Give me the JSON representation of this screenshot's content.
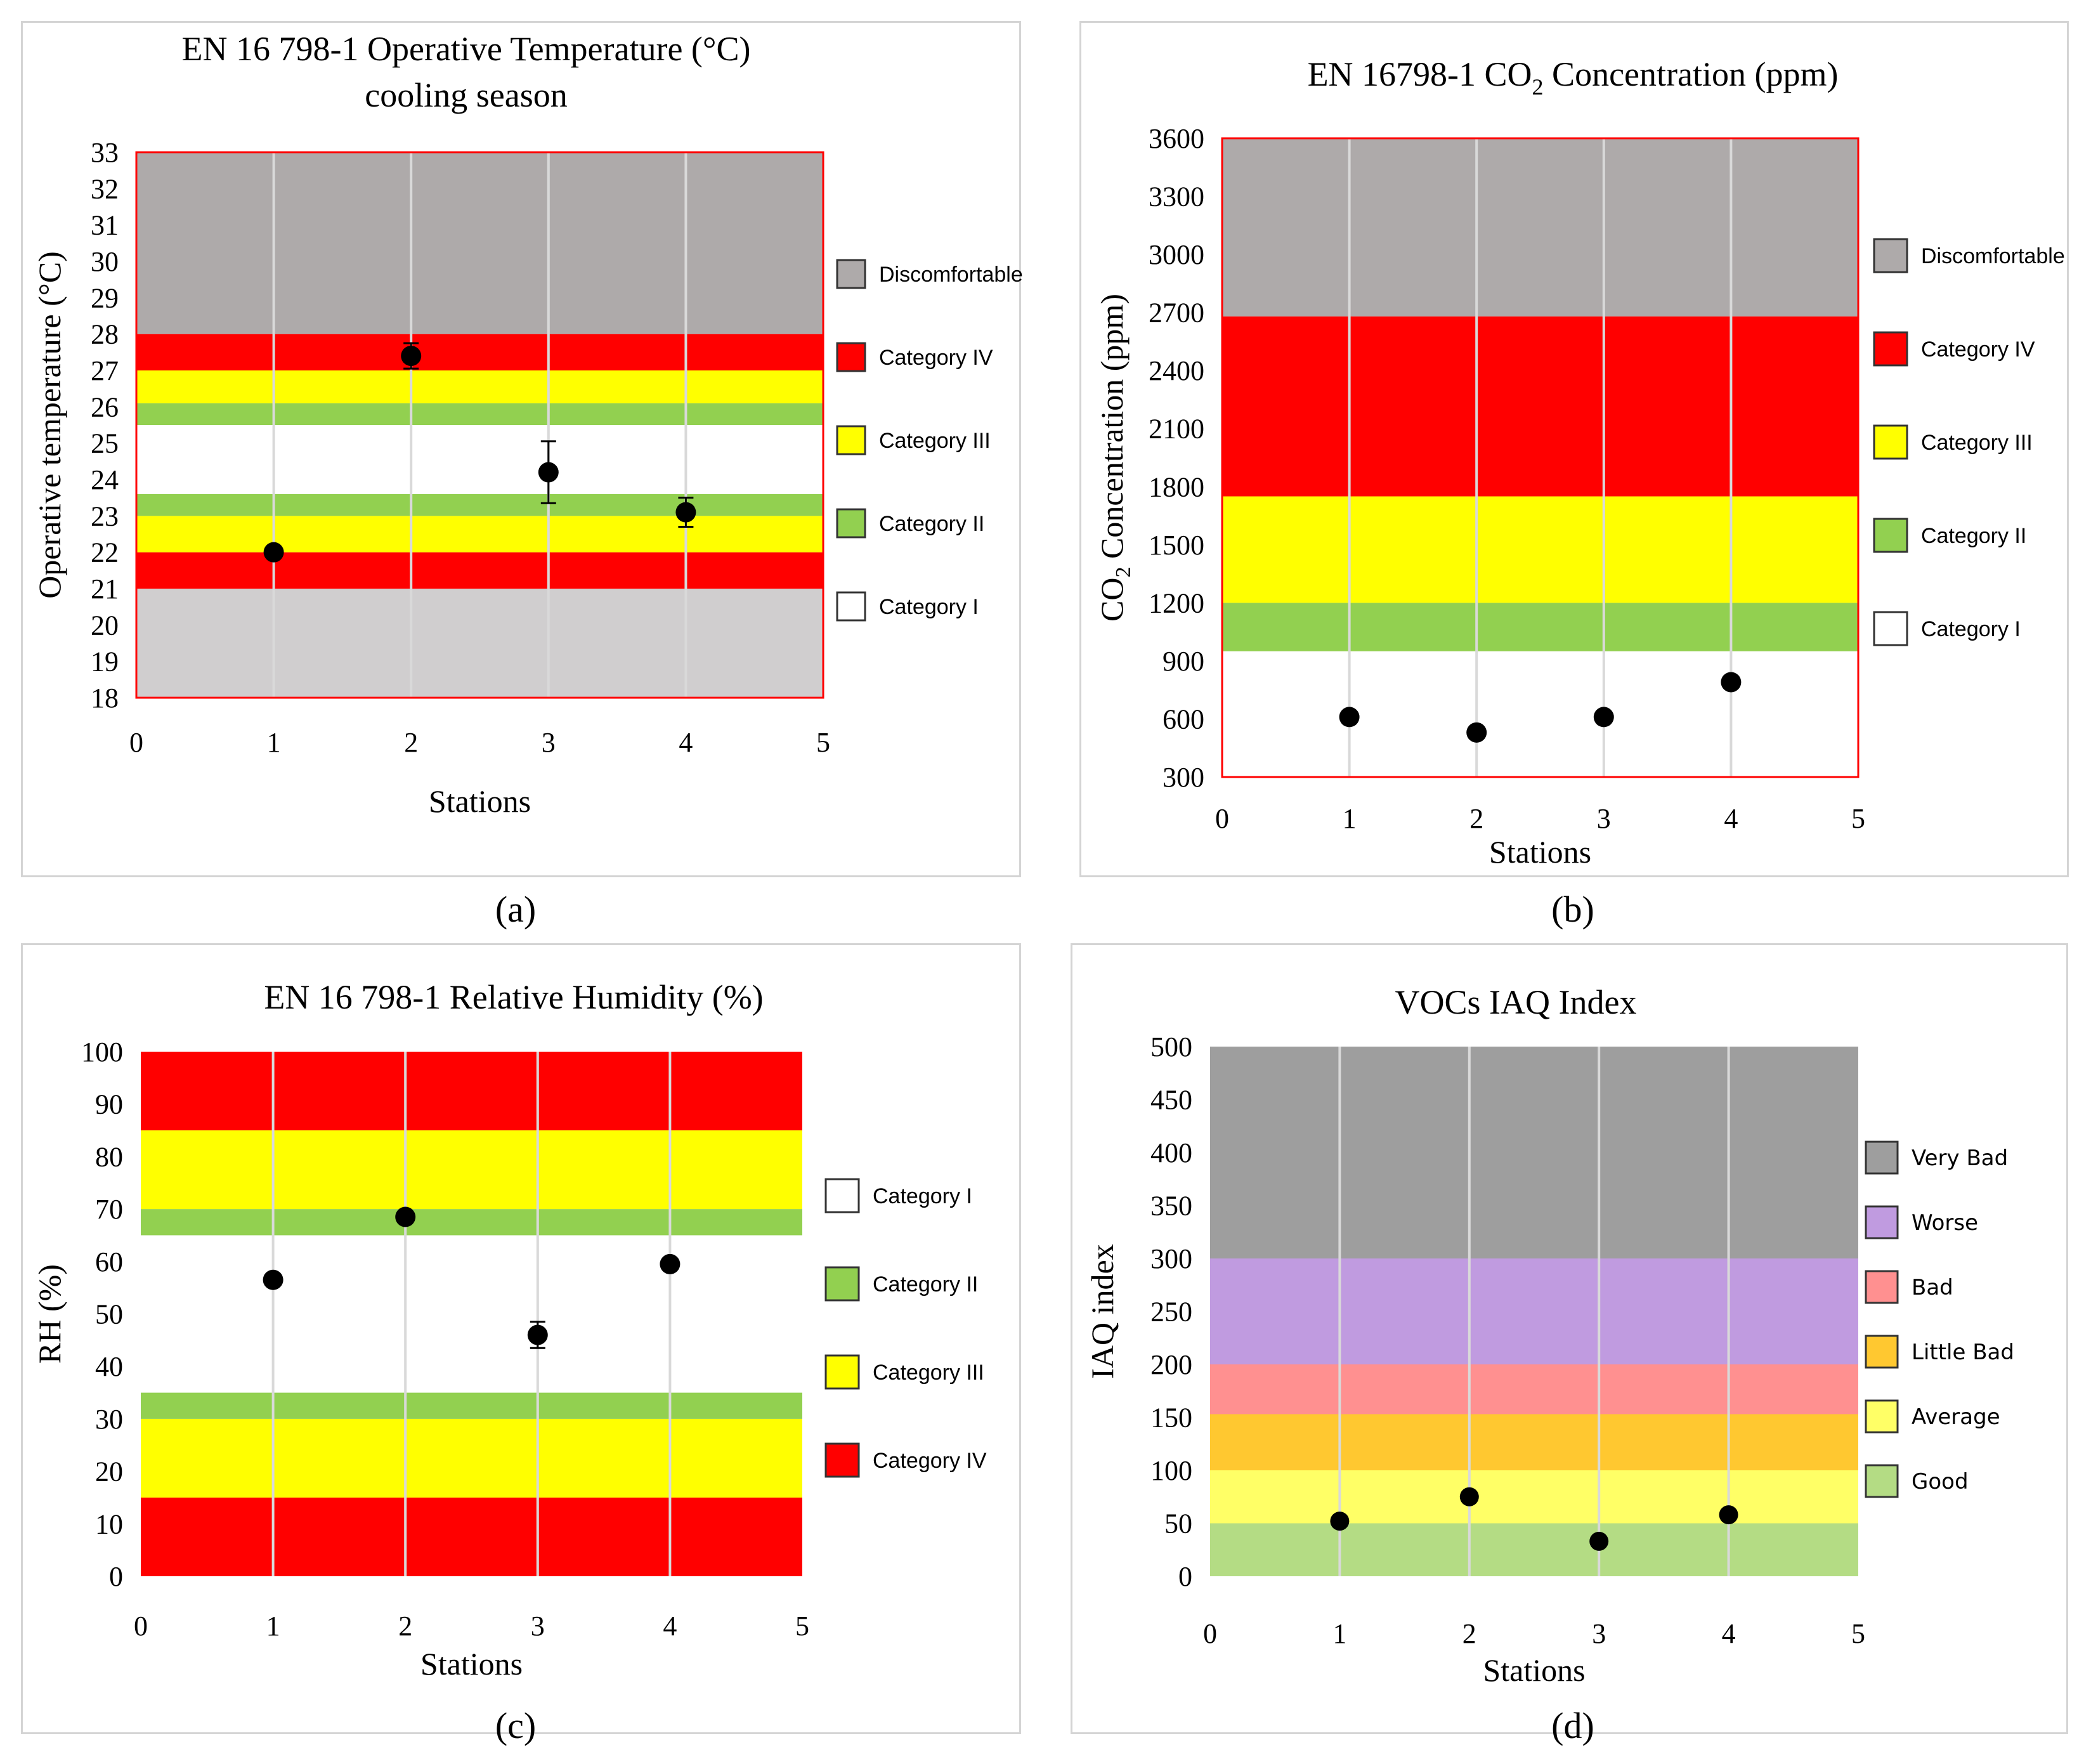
{
  "chart_data": [
    {
      "id": "a",
      "type": "scatter",
      "title": "EN 16 798-1 Operative Temperature (°C)",
      "subtitle": "cooling season",
      "xlabel": "Stations",
      "ylabel": "Operative temperature (°C)",
      "xlim": [
        0,
        5
      ],
      "ylim": [
        18,
        33
      ],
      "x_ticks": [
        "0",
        "1",
        "2",
        "3",
        "4",
        "5"
      ],
      "y_ticks": [
        "18",
        "19",
        "20",
        "21",
        "22",
        "23",
        "24",
        "25",
        "26",
        "27",
        "28",
        "29",
        "30",
        "31",
        "32",
        "33"
      ],
      "bands": [
        {
          "from": 18,
          "to": 21,
          "color": "#d0cecf"
        },
        {
          "from": 21,
          "to": 22,
          "color": "#ff0000"
        },
        {
          "from": 22,
          "to": 23,
          "color": "#ffff00"
        },
        {
          "from": 23,
          "to": 23.6,
          "color": "#92d050"
        },
        {
          "from": 23.6,
          "to": 25.5,
          "color": "#ffffff"
        },
        {
          "from": 25.5,
          "to": 26.1,
          "color": "#92d050"
        },
        {
          "from": 26.1,
          "to": 27,
          "color": "#ffff00"
        },
        {
          "from": 27,
          "to": 28,
          "color": "#ff0000"
        },
        {
          "from": 28,
          "to": 33,
          "color": "#aeaaaa"
        }
      ],
      "legend": [
        {
          "label": "Discomfortable",
          "color": "#aeaaaa"
        },
        {
          "label": "Category IV",
          "color": "#ff0000"
        },
        {
          "label": "Category III",
          "color": "#ffff00"
        },
        {
          "label": "Category II",
          "color": "#92d050"
        },
        {
          "label": "Category I",
          "color": "#ffffff"
        }
      ],
      "points": [
        {
          "x": 1,
          "y": 22.0,
          "err": 0.15
        },
        {
          "x": 2,
          "y": 27.4,
          "err": 0.35
        },
        {
          "x": 3,
          "y": 24.2,
          "err": 0.85
        },
        {
          "x": 4,
          "y": 23.1,
          "err": 0.4
        }
      ],
      "caption": "(a)"
    },
    {
      "id": "b",
      "type": "scatter",
      "title": "EN 16798-1 CO",
      "title_sub": "2",
      "title_tail": " Concentration (ppm)",
      "xlabel": "Stations",
      "ylabel": "CO",
      "ylabel_sub": "2",
      "ylabel_tail": " Concentration (ppm)",
      "xlim": [
        0,
        5
      ],
      "ylim": [
        300,
        3600
      ],
      "x_ticks": [
        "0",
        "1",
        "2",
        "3",
        "4",
        "5"
      ],
      "y_ticks": [
        "300",
        "600",
        "900",
        "1200",
        "1500",
        "1800",
        "2100",
        "2400",
        "2700",
        "3000",
        "3300",
        "3600"
      ],
      "bands": [
        {
          "from": 300,
          "to": 950,
          "color": "#ffffff"
        },
        {
          "from": 950,
          "to": 1200,
          "color": "#92d050"
        },
        {
          "from": 1200,
          "to": 1750,
          "color": "#ffff00"
        },
        {
          "from": 1750,
          "to": 2680,
          "color": "#ff0000"
        },
        {
          "from": 2680,
          "to": 3600,
          "color": "#aeaaaa"
        }
      ],
      "legend": [
        {
          "label": "Discomfortable",
          "color": "#aeaaaa"
        },
        {
          "label": "Category IV",
          "color": "#ff0000"
        },
        {
          "label": "Category III",
          "color": "#ffff00"
        },
        {
          "label": "Category II",
          "color": "#92d050"
        },
        {
          "label": "Category I",
          "color": "#ffffff"
        }
      ],
      "points": [
        {
          "x": 1,
          "y": 610,
          "err": 0
        },
        {
          "x": 2,
          "y": 530,
          "err": 0
        },
        {
          "x": 3,
          "y": 610,
          "err": 0
        },
        {
          "x": 4,
          "y": 790,
          "err": 0
        }
      ],
      "caption": "(b)"
    },
    {
      "id": "c",
      "type": "scatter",
      "title": "EN 16 798-1 Relative Humidity (%)",
      "xlabel": "Stations",
      "ylabel": "RH (%)",
      "xlim": [
        0,
        5
      ],
      "ylim": [
        0,
        100
      ],
      "x_ticks": [
        "0",
        "1",
        "2",
        "3",
        "4",
        "5"
      ],
      "y_ticks": [
        "0",
        "10",
        "20",
        "30",
        "40",
        "50",
        "60",
        "70",
        "80",
        "90",
        "100"
      ],
      "bands": [
        {
          "from": 0,
          "to": 15,
          "color": "#ff0000"
        },
        {
          "from": 15,
          "to": 30,
          "color": "#ffff00"
        },
        {
          "from": 30,
          "to": 35,
          "color": "#92d050"
        },
        {
          "from": 35,
          "to": 65,
          "color": "#ffffff"
        },
        {
          "from": 65,
          "to": 70,
          "color": "#92d050"
        },
        {
          "from": 70,
          "to": 85,
          "color": "#ffff00"
        },
        {
          "from": 85,
          "to": 100,
          "color": "#ff0000"
        }
      ],
      "legend": [
        {
          "label": "Category I",
          "color": "#ffffff"
        },
        {
          "label": "Category II",
          "color": "#92d050"
        },
        {
          "label": "Category III",
          "color": "#ffff00"
        },
        {
          "label": "Category IV",
          "color": "#ff0000"
        }
      ],
      "points": [
        {
          "x": 1,
          "y": 56.5,
          "err": 0.8
        },
        {
          "x": 2,
          "y": 68.5,
          "err": 0.8
        },
        {
          "x": 3,
          "y": 46,
          "err": 2.5
        },
        {
          "x": 4,
          "y": 59.5,
          "err": 0.5
        }
      ],
      "caption": "(c)"
    },
    {
      "id": "d",
      "type": "scatter",
      "title": "VOCs IAQ  Index",
      "xlabel": "Stations",
      "ylabel": "IAQ index",
      "xlim": [
        0,
        5
      ],
      "ylim": [
        0,
        500
      ],
      "x_ticks": [
        "0",
        "1",
        "2",
        "3",
        "4",
        "5"
      ],
      "y_ticks": [
        "0",
        "50",
        "100",
        "150",
        "200",
        "250",
        "300",
        "350",
        "400",
        "450",
        "500"
      ],
      "bands": [
        {
          "from": 0,
          "to": 50,
          "color": "#b4dc84"
        },
        {
          "from": 50,
          "to": 100,
          "color": "#ffff66"
        },
        {
          "from": 100,
          "to": 153,
          "color": "#ffc830"
        },
        {
          "from": 153,
          "to": 200,
          "color": "#ff9090"
        },
        {
          "from": 200,
          "to": 300,
          "color": "#c09be0"
        },
        {
          "from": 300,
          "to": 500,
          "color": "#9e9e9e"
        }
      ],
      "legend": [
        {
          "label": "Very Bad",
          "color": "#9e9e9e"
        },
        {
          "label": "Worse",
          "color": "#c09be0"
        },
        {
          "label": "Bad",
          "color": "#ff9090"
        },
        {
          "label": "Little Bad",
          "color": "#ffc830"
        },
        {
          "label": "Average",
          "color": "#ffff66"
        },
        {
          "label": "Good",
          "color": "#b4dc84"
        }
      ],
      "points": [
        {
          "x": 1,
          "y": 52,
          "err": 0
        },
        {
          "x": 2,
          "y": 75,
          "err": 0
        },
        {
          "x": 3,
          "y": 33,
          "err": 0
        },
        {
          "x": 4,
          "y": 58,
          "err": 0
        }
      ],
      "caption": "(d)"
    }
  ]
}
